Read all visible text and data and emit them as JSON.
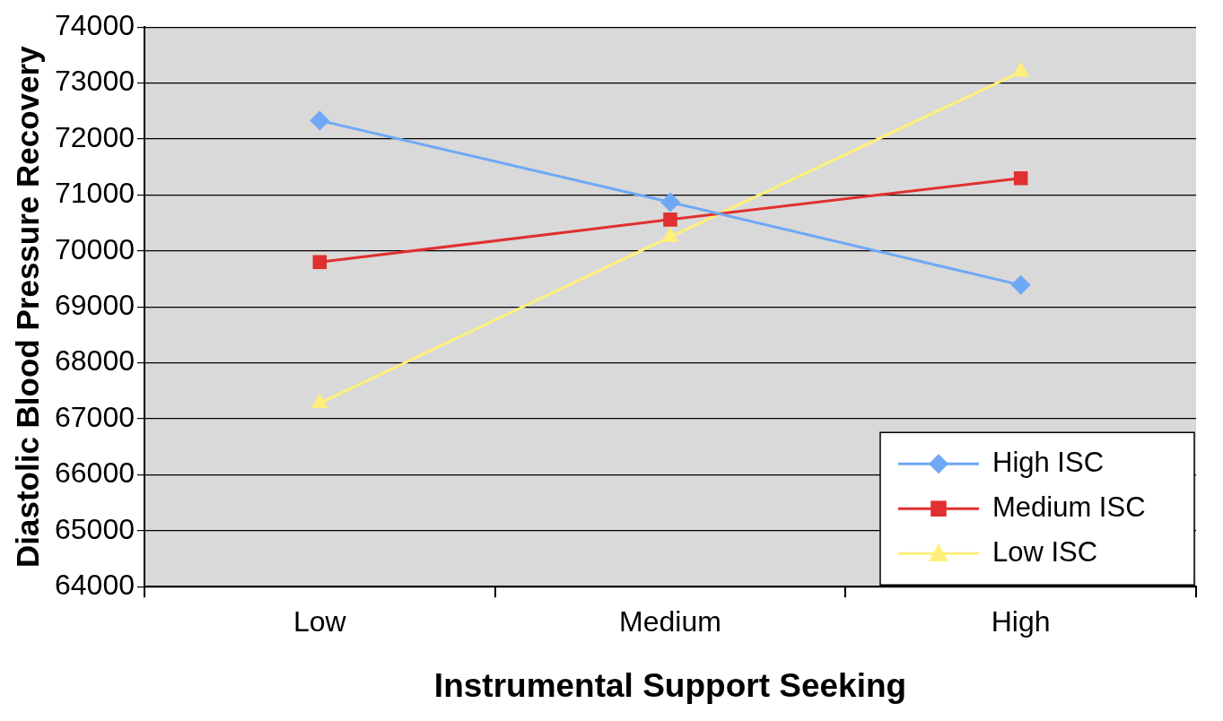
{
  "chart_data": {
    "type": "line",
    "xlabel": "Instrumental Support Seeking",
    "ylabel": "Diastolic Blood Pressure Recovery",
    "categories": [
      "Low",
      "Medium",
      "High"
    ],
    "series": [
      {
        "name": "High ISC",
        "color": "#6fa8f5",
        "marker": "diamond",
        "values": [
          72330,
          70870,
          69390
        ]
      },
      {
        "name": "Medium ISC",
        "color": "#e03030",
        "marker": "square",
        "values": [
          69800,
          70560,
          71300
        ]
      },
      {
        "name": "Low ISC",
        "color": "#fff07a",
        "marker": "triangle",
        "values": [
          67280,
          70250,
          73200
        ]
      }
    ],
    "ylim": [
      64000,
      74000
    ],
    "yticks": [
      64000,
      65000,
      66000,
      67000,
      68000,
      69000,
      70000,
      71000,
      72000,
      73000,
      74000
    ],
    "grid": "y",
    "legend": "bottom right",
    "line_style": "solid"
  }
}
